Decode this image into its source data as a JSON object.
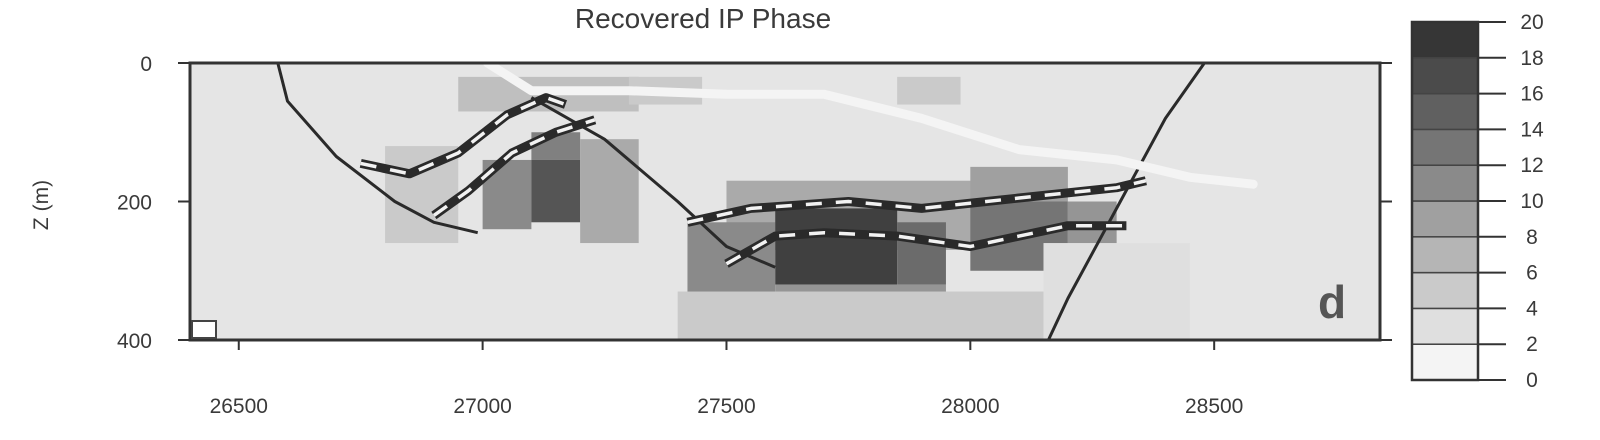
{
  "chart_data": {
    "type": "heatmap",
    "title": "Recovered IP Phase",
    "ylabel": "Z (m)",
    "xlabel": "",
    "panel_label": "d",
    "xlim": [
      26400,
      28840
    ],
    "ylim": [
      400,
      0
    ],
    "y_reversed": true,
    "x_ticks": [
      26500,
      27000,
      27500,
      28000,
      28500
    ],
    "x_tick_labels": [
      "26500",
      "27000",
      "27500",
      "28000",
      "28500"
    ],
    "y_ticks": [
      0,
      200,
      400
    ],
    "y_tick_labels": [
      "0",
      "200",
      "400"
    ],
    "colorbar": {
      "min": 0,
      "max": 20,
      "ticks": [
        0,
        2,
        4,
        6,
        8,
        10,
        12,
        14,
        16,
        18,
        20
      ],
      "tick_labels": [
        "0",
        "2",
        "4",
        "6",
        "8",
        "10",
        "12",
        "14",
        "16",
        "18",
        "20"
      ],
      "color_low": "#ffffff",
      "color_high": "#2b2b2b"
    },
    "grid": false,
    "anomalies": [
      {
        "x": [
          26950,
          27320
        ],
        "z": [
          20,
          70
        ],
        "value": 6
      },
      {
        "x": [
          27300,
          27450
        ],
        "z": [
          20,
          60
        ],
        "value": 5
      },
      {
        "x": [
          27850,
          27980
        ],
        "z": [
          20,
          60
        ],
        "value": 5
      },
      {
        "x": [
          26800,
          26950
        ],
        "z": [
          120,
          260
        ],
        "value": 5
      },
      {
        "x": [
          27000,
          27100
        ],
        "z": [
          140,
          240
        ],
        "value": 11
      },
      {
        "x": [
          27100,
          27200
        ],
        "z": [
          100,
          140
        ],
        "value": 12
      },
      {
        "x": [
          27100,
          27200
        ],
        "z": [
          140,
          230
        ],
        "value": 16
      },
      {
        "x": [
          27200,
          27320
        ],
        "z": [
          110,
          260
        ],
        "value": 8
      },
      {
        "x": [
          27500,
          28100
        ],
        "z": [
          170,
          270
        ],
        "value": 8
      },
      {
        "x": [
          27420,
          27600
        ],
        "z": [
          230,
          340
        ],
        "value": 11
      },
      {
        "x": [
          27600,
          27850
        ],
        "z": [
          210,
          320
        ],
        "value": 18
      },
      {
        "x": [
          27850,
          27950
        ],
        "z": [
          230,
          320
        ],
        "value": 14
      },
      {
        "x": [
          27600,
          27950
        ],
        "z": [
          320,
          375
        ],
        "value": 10
      },
      {
        "x": [
          28000,
          28200
        ],
        "z": [
          150,
          200
        ],
        "value": 9
      },
      {
        "x": [
          28000,
          28200
        ],
        "z": [
          200,
          300
        ],
        "value": 13
      },
      {
        "x": [
          28200,
          28300
        ],
        "z": [
          200,
          270
        ],
        "value": 10
      },
      {
        "x": [
          27400,
          28150
        ],
        "z": [
          330,
          400
        ],
        "value": 5
      },
      {
        "x": [
          28150,
          28450
        ],
        "z": [
          260,
          400
        ],
        "value": 3
      }
    ],
    "annotation_lines": [
      {
        "style": "solid",
        "color": "#2a2a2a",
        "points": [
          [
            26580,
            0
          ],
          [
            26600,
            55
          ],
          [
            26700,
            135
          ],
          [
            26820,
            200
          ],
          [
            26900,
            230
          ],
          [
            26990,
            245
          ]
        ]
      },
      {
        "style": "solid",
        "color": "#2a2a2a",
        "points": [
          [
            27100,
            50
          ],
          [
            27250,
            110
          ],
          [
            27400,
            200
          ],
          [
            27500,
            265
          ],
          [
            27600,
            295
          ]
        ]
      },
      {
        "style": "solid",
        "color": "#2a2a2a",
        "points": [
          [
            28160,
            400
          ],
          [
            28200,
            340
          ],
          [
            28300,
            210
          ],
          [
            28400,
            80
          ],
          [
            28480,
            0
          ]
        ]
      },
      {
        "style": "solid-white",
        "color": "#f4f4f4",
        "points": [
          [
            27010,
            0
          ],
          [
            27100,
            40
          ],
          [
            27300,
            40
          ],
          [
            27500,
            45
          ],
          [
            27700,
            45
          ],
          [
            27900,
            80
          ],
          [
            28100,
            125
          ],
          [
            28300,
            140
          ],
          [
            28450,
            165
          ],
          [
            28580,
            175
          ]
        ]
      },
      {
        "style": "dashed",
        "color": "#2a2a2a",
        "points": [
          [
            26750,
            145
          ],
          [
            26850,
            160
          ],
          [
            26950,
            130
          ],
          [
            27050,
            75
          ],
          [
            27130,
            50
          ],
          [
            27170,
            60
          ]
        ]
      },
      {
        "style": "dashed",
        "color": "#2a2a2a",
        "points": [
          [
            26900,
            220
          ],
          [
            26970,
            185
          ],
          [
            27060,
            130
          ],
          [
            27150,
            100
          ],
          [
            27230,
            82
          ]
        ]
      },
      {
        "style": "dashed",
        "color": "#2a2a2a",
        "points": [
          [
            27420,
            230
          ],
          [
            27550,
            210
          ],
          [
            27650,
            205
          ],
          [
            27750,
            200
          ],
          [
            27900,
            210
          ],
          [
            28100,
            195
          ],
          [
            28300,
            180
          ],
          [
            28360,
            170
          ]
        ]
      },
      {
        "style": "dashed",
        "color": "#2a2a2a",
        "points": [
          [
            27500,
            290
          ],
          [
            27600,
            250
          ],
          [
            27700,
            245
          ],
          [
            27850,
            250
          ],
          [
            28000,
            265
          ],
          [
            28100,
            250
          ],
          [
            28200,
            235
          ],
          [
            28320,
            235
          ]
        ]
      }
    ]
  }
}
